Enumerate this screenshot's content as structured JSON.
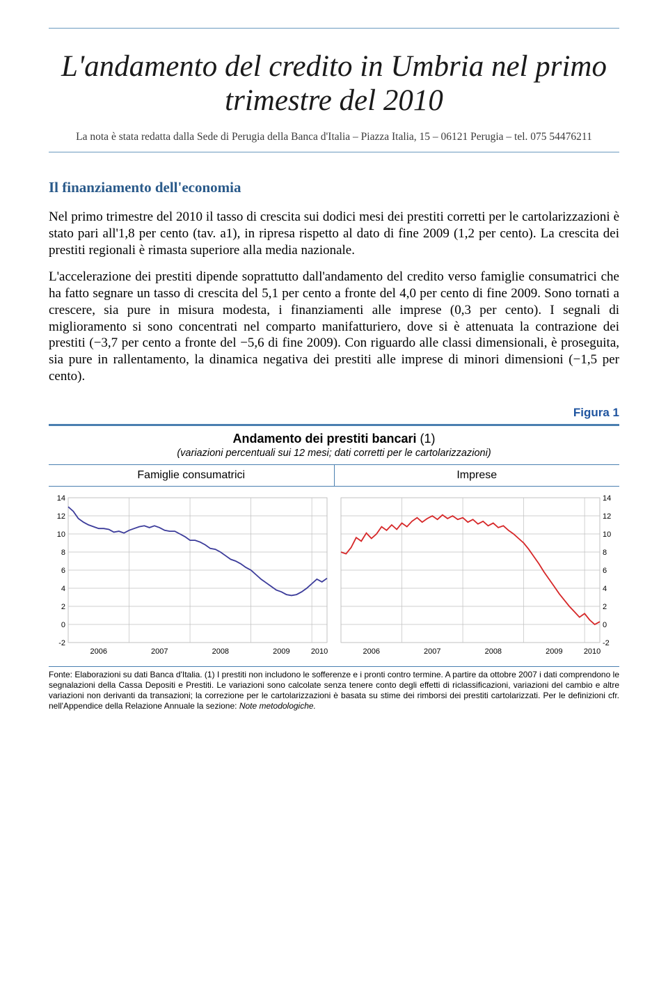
{
  "title_line1": "L'andamento del credito in Umbria nel primo",
  "title_line2": "trimestre del 2010",
  "subtitle": "La nota è stata redatta dalla Sede di Perugia della Banca d'Italia – Piazza Italia, 15 – 06121 Perugia – tel. 075 54476211",
  "section_heading": "Il finanziamento dell'economia",
  "para1": "Nel primo trimestre del 2010 il tasso di crescita sui dodici mesi dei prestiti corretti per le cartolarizzazioni è stato pari all'1,8 per cento (tav. a1), in ripresa rispetto al dato di fine 2009 (1,2 per cento). La crescita dei prestiti regionali è rimasta superiore alla media nazionale.",
  "para2": "L'accelerazione dei prestiti dipende soprattutto dall'andamento del credito verso famiglie consumatrici che ha fatto segnare un tasso di crescita del 5,1 per cento a fronte del 4,0 per cento di fine 2009. Sono tornati a crescere, sia pure in misura modesta, i finanziamenti alle imprese (0,3 per cento). I segnali di miglioramento si sono concentrati nel comparto manifatturiero, dove si è attenuata la contrazione dei prestiti (−3,7 per cento a fronte del −5,6 di fine 2009). Con riguardo alle classi dimensionali, è proseguita, sia pure in rallentamento, la dinamica negativa dei prestiti alle imprese di minori dimensioni (−1,5 per cento).",
  "figure_label": "Figura 1",
  "figure_title": "Andamento dei prestiti bancari",
  "figure_title_paren": "(1)",
  "figure_subtitle": "(variazioni percentuali sui 12 mesi; dati corretti per le cartolarizzazioni)",
  "panel_left_title": "Famiglie consumatrici",
  "panel_right_title": "Imprese",
  "footnote": "Fonte: Elaborazioni su dati Banca d'Italia.\n(1) I prestiti non includono le sofferenze e i pronti contro termine. A partire da ottobre 2007 i dati comprendono le segnalazioni della Cassa Depositi e Prestiti. Le variazioni sono calcolate senza tenere conto degli effetti di riclassificazioni, variazioni del cambio e altre variazioni non derivanti da transazioni; la correzione per le cartolarizzazioni è basata su stime dei rimborsi dei prestiti cartolarizzati. Per le definizioni cfr. nell'Appendice della Relazione Annuale la sezione: ",
  "footnote_em": "Note metodologiche.",
  "chart": {
    "ylim": [
      -2,
      14
    ],
    "yticks": [
      -2,
      0,
      2,
      4,
      6,
      8,
      10,
      12,
      14
    ],
    "xlabels": [
      "2006",
      "2007",
      "2008",
      "2009",
      "2010"
    ],
    "x_count": 52,
    "grid_color": "#bfbfbf",
    "axis_color": "#000000",
    "left": {
      "title": "Famiglie consumatrici",
      "color": "#3b3b9a",
      "stroke_width": 1.8,
      "values": [
        13.0,
        12.5,
        11.7,
        11.3,
        11.0,
        10.8,
        10.6,
        10.6,
        10.5,
        10.2,
        10.3,
        10.1,
        10.4,
        10.6,
        10.8,
        10.9,
        10.7,
        10.9,
        10.7,
        10.4,
        10.3,
        10.3,
        10.0,
        9.7,
        9.3,
        9.3,
        9.1,
        8.8,
        8.4,
        8.3,
        8.0,
        7.6,
        7.2,
        7.0,
        6.7,
        6.3,
        6.0,
        5.5,
        5.0,
        4.6,
        4.2,
        3.8,
        3.6,
        3.3,
        3.2,
        3.3,
        3.6,
        4.0,
        4.5,
        5.0,
        4.7,
        5.1
      ]
    },
    "right": {
      "title": "Imprese",
      "color": "#d62728",
      "stroke_width": 1.8,
      "values": [
        8.0,
        7.8,
        8.5,
        9.6,
        9.2,
        10.1,
        9.5,
        10.0,
        10.8,
        10.4,
        11.0,
        10.5,
        11.2,
        10.8,
        11.4,
        11.8,
        11.3,
        11.7,
        12.0,
        11.6,
        12.1,
        11.7,
        12.0,
        11.6,
        11.8,
        11.3,
        11.6,
        11.1,
        11.4,
        10.9,
        11.2,
        10.7,
        10.9,
        10.4,
        10.0,
        9.5,
        9.0,
        8.3,
        7.5,
        6.7,
        5.8,
        5.0,
        4.2,
        3.4,
        2.7,
        2.0,
        1.4,
        0.8,
        1.2,
        0.5,
        0.0,
        0.3
      ]
    }
  },
  "colors": {
    "rule": "#6a9abf",
    "heading": "#2a5a8a",
    "figure_blue": "#2055a0",
    "figure_border": "#4a7fb0"
  }
}
